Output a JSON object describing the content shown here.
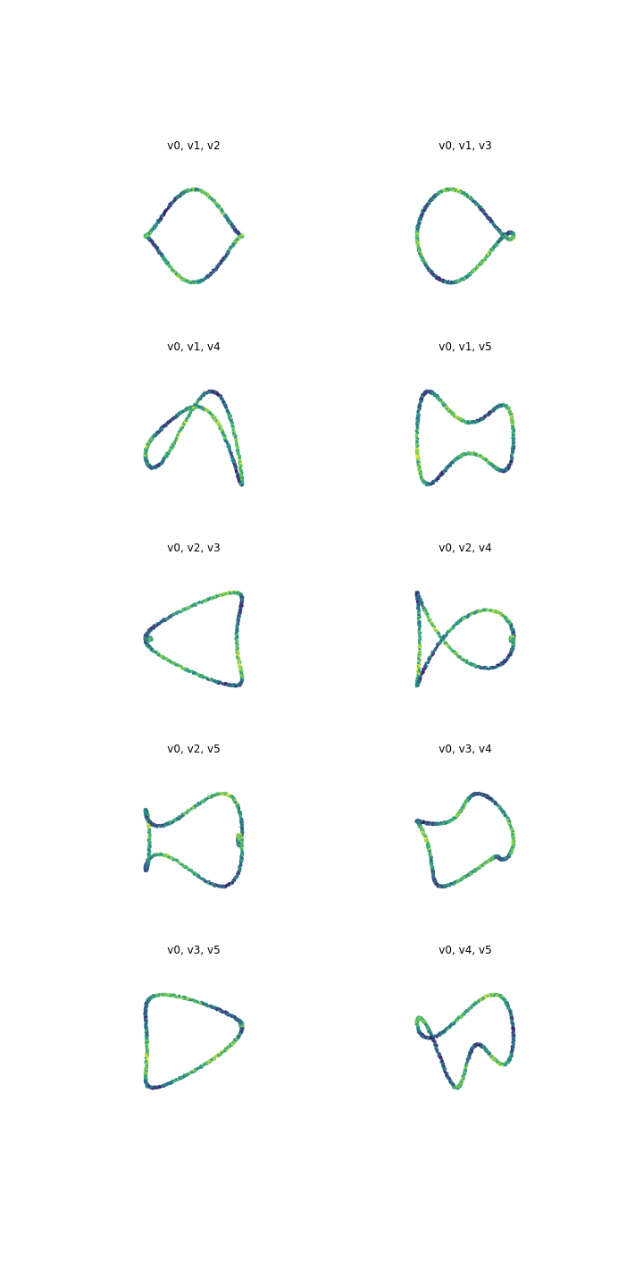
{
  "chart_data": [
    {
      "type": "scatter",
      "title": "v0, v1, v2",
      "variables": [
        "v0",
        "v1",
        "v2"
      ],
      "grid": false,
      "axes_visible": false
    },
    {
      "type": "scatter",
      "title": "v0, v1, v3",
      "variables": [
        "v0",
        "v1",
        "v3"
      ],
      "grid": false,
      "axes_visible": false
    },
    {
      "type": "scatter",
      "title": "v0, v1, v4",
      "variables": [
        "v0",
        "v1",
        "v4"
      ],
      "grid": false,
      "axes_visible": false
    },
    {
      "type": "scatter",
      "title": "v0, v1, v5",
      "variables": [
        "v0",
        "v1",
        "v5"
      ],
      "grid": false,
      "axes_visible": false
    },
    {
      "type": "scatter",
      "title": "v0, v2, v3",
      "variables": [
        "v0",
        "v2",
        "v3"
      ],
      "grid": false,
      "axes_visible": false
    },
    {
      "type": "scatter",
      "title": "v0, v2, v4",
      "variables": [
        "v0",
        "v2",
        "v4"
      ],
      "grid": false,
      "axes_visible": false
    },
    {
      "type": "scatter",
      "title": "v0, v2, v5",
      "variables": [
        "v0",
        "v2",
        "v5"
      ],
      "grid": false,
      "axes_visible": false
    },
    {
      "type": "scatter",
      "title": "v0, v3, v4",
      "variables": [
        "v0",
        "v3",
        "v4"
      ],
      "grid": false,
      "axes_visible": false
    },
    {
      "type": "scatter",
      "title": "v0, v3, v5",
      "variables": [
        "v0",
        "v3",
        "v5"
      ],
      "grid": false,
      "axes_visible": false
    },
    {
      "type": "scatter",
      "title": "v0, v4, v5",
      "variables": [
        "v0",
        "v4",
        "v5"
      ],
      "grid": false,
      "axes_visible": false
    }
  ],
  "colormap": {
    "name": "viridis",
    "stops": [
      "#440154",
      "#3b528b",
      "#21918c",
      "#5ec962",
      "#fde725"
    ]
  }
}
